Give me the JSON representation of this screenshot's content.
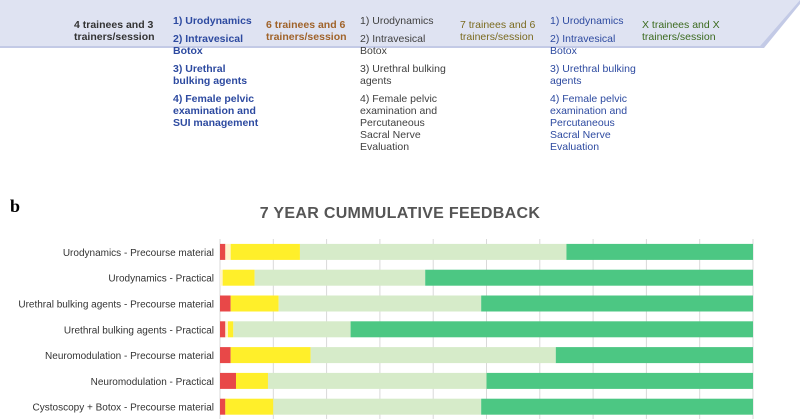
{
  "panel_a": {
    "columns": [
      {
        "count": "4 trainees and 3 trainers/session",
        "items": [
          "1) Urodynamics",
          "2) Intravesical Botox",
          "3) Urethral bulking agents",
          "4) Female pelvic examination and SUI management"
        ]
      },
      {
        "count": "6 trainees and 6 trainers/session",
        "items": [
          "1) Urodynamics",
          "2) Intravesical Botox",
          "3) Urethral bulking agents",
          "4) Female pelvic examination and Percutaneous Sacral Nerve Evaluation"
        ]
      },
      {
        "count": "7 trainees and 6 trainers/session",
        "items": [
          "1) Urodynamics",
          "2) Intravesical Botox",
          "3) Urethral bulking agents",
          "4) Female pelvic examination and Percutaneous Sacral Nerve Evaluation"
        ]
      },
      {
        "count": "X trainees and X trainers/session",
        "items": []
      }
    ]
  },
  "panel_label": "b",
  "chart_data": {
    "type": "bar",
    "orientation": "horizontal-stacked-percent",
    "title": "7 YEAR CUMMULATIVE FEEDBACK",
    "categories": [
      "Urodynamics - Precourse material",
      "Urodynamics - Practical",
      "Urethral bulking agents - Precourse material",
      "Urethral bulking agents - Practical",
      "Neuromodulation - Precourse material",
      "Neuromodulation - Practical",
      "Cystoscopy + Botox - Precourse material"
    ],
    "xlim": [
      0,
      100
    ],
    "grid": true,
    "series": [
      {
        "color": "#e84848",
        "values": [
          1,
          0,
          2,
          1,
          2,
          3,
          1
        ]
      },
      {
        "color": "#fff3cc",
        "values": [
          1,
          0.5,
          0,
          0.5,
          0,
          0,
          0
        ]
      },
      {
        "color": "#ffef2a",
        "values": [
          13,
          6,
          9,
          1,
          15,
          6,
          9
        ]
      },
      {
        "color": "#d6ebc9",
        "values": [
          50,
          32,
          38,
          22,
          46,
          41,
          39
        ]
      },
      {
        "color": "#4cc783",
        "values": [
          35,
          61.5,
          51,
          75.5,
          37,
          50,
          51
        ]
      }
    ]
  }
}
